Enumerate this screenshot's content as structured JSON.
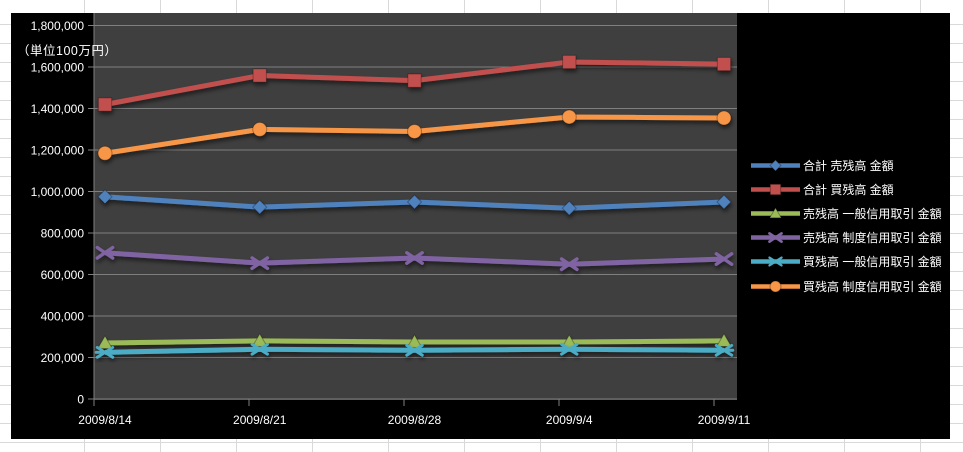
{
  "chart_data": {
    "type": "line",
    "title": "",
    "unit_label": "（単位100万円）",
    "categories": [
      "2009/8/14",
      "2009/8/21",
      "2009/8/28",
      "2009/9/4",
      "2009/9/11"
    ],
    "series": [
      {
        "name": "合計 売残高 金額",
        "color": "#4F81BD",
        "marker": "diamond",
        "values": [
          975000,
          925000,
          950000,
          920000,
          950000
        ]
      },
      {
        "name": "合計 買残高 金額",
        "color": "#C0504D",
        "marker": "square",
        "values": [
          1420000,
          1560000,
          1535000,
          1625000,
          1615000
        ]
      },
      {
        "name": "売残高 一般信用取引 金額",
        "color": "#9BBB59",
        "marker": "triangle",
        "values": [
          270000,
          280000,
          275000,
          275000,
          280000
        ]
      },
      {
        "name": "売残高 制度信用取引 金額",
        "color": "#8064A2",
        "marker": "x",
        "values": [
          705000,
          655000,
          680000,
          650000,
          675000
        ]
      },
      {
        "name": "買残高 一般信用取引 金額",
        "color": "#4BACC6",
        "marker": "asterisk",
        "values": [
          225000,
          240000,
          235000,
          240000,
          235000
        ]
      },
      {
        "name": "買残高 制度信用取引 金額",
        "color": "#F79646",
        "marker": "circle",
        "values": [
          1185000,
          1300000,
          1290000,
          1360000,
          1355000
        ]
      }
    ],
    "xlabel": "",
    "ylabel": "",
    "ylim": [
      0,
      1800000
    ],
    "y_tick_step": 200000,
    "y_tick_labels": [
      "0",
      "200,000",
      "400,000",
      "600,000",
      "800,000",
      "1,000,000",
      "1,200,000",
      "1,400,000",
      "1,600,000",
      "1,800,000"
    ],
    "grid": true,
    "legend_position": "right",
    "colors": {
      "chart_background": "#000000",
      "plot_background": "#3F3F3F",
      "gridline": "#7F7F7F",
      "text": "#FFFFFF"
    }
  }
}
